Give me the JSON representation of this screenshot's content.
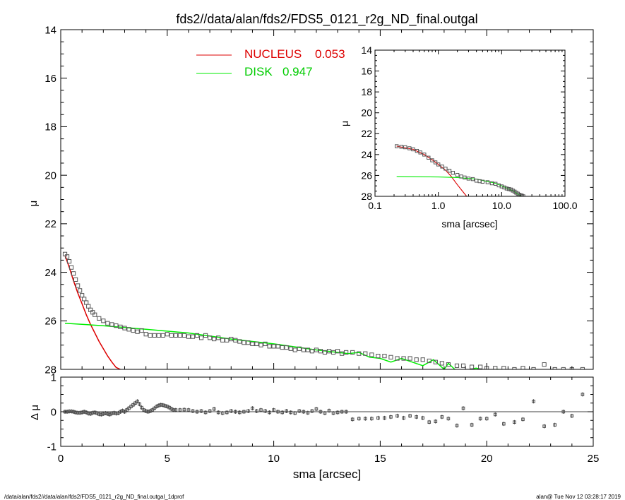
{
  "title": "fds2//data/alan/fds2/FDS5_0121_r2g_ND_final.outgal",
  "footer": {
    "left": "/data/alan/fds2//data/alan/fds2/FDS5_0121_r2g_ND_final.outgal_1dprof",
    "right": "alan@  Tue Nov 12 03:28:17 2019"
  },
  "colors": {
    "nucleus": "#dd0000",
    "disk": "#00ee00",
    "data": "#555555",
    "axis": "#000000"
  },
  "chart_data": [
    {
      "id": "main-profile",
      "type": "line",
      "xlabel": "",
      "ylabel": "μ",
      "xlim": [
        0,
        25
      ],
      "ylim": [
        14,
        28
      ],
      "y_inverted": true,
      "xticks": [
        0,
        5,
        10,
        15,
        20,
        25
      ],
      "yticks": [
        14,
        16,
        18,
        20,
        22,
        24,
        26,
        28
      ],
      "legend_position": "top-center",
      "legend": [
        {
          "name": "NUCLEUS",
          "value": "0.053",
          "color": "#dd0000"
        },
        {
          "name": "DISK",
          "value": "0.947",
          "color": "#00ee00"
        }
      ],
      "series": [
        {
          "name": "NUCLEUS",
          "kind": "line",
          "color": "#dd0000",
          "x": [
            0.2,
            0.4,
            0.6,
            0.8,
            1.0,
            1.2,
            1.4,
            1.6,
            1.8,
            2.0,
            2.2,
            2.4,
            2.6,
            2.8
          ],
          "y": [
            23.3,
            23.8,
            24.35,
            24.85,
            25.3,
            25.75,
            26.15,
            26.5,
            26.85,
            27.15,
            27.45,
            27.7,
            27.92,
            28.0
          ]
        },
        {
          "name": "DISK",
          "kind": "line",
          "color": "#00ee00",
          "x": [
            0.2,
            2,
            4,
            6,
            8,
            10,
            12,
            13,
            13.5,
            14,
            14.5,
            15,
            15.5,
            16,
            16.5,
            17,
            17.5,
            18,
            18.2,
            18.5,
            19,
            19.5,
            20,
            20.5,
            21
          ],
          "y": [
            26.1,
            26.2,
            26.35,
            26.5,
            26.75,
            26.95,
            27.2,
            27.3,
            27.35,
            27.3,
            27.5,
            27.55,
            27.7,
            27.55,
            27.7,
            27.85,
            27.6,
            28.0,
            27.75,
            28.0,
            28.05,
            27.95,
            28.05,
            28.0,
            28.05
          ]
        },
        {
          "name": "data",
          "kind": "points",
          "color": "#555555",
          "x": [
            0.2,
            0.3,
            0.4,
            0.5,
            0.6,
            0.7,
            0.8,
            0.9,
            1.0,
            1.1,
            1.2,
            1.3,
            1.4,
            1.5,
            1.6,
            1.8,
            2.0,
            2.2,
            2.4,
            2.6,
            2.8,
            3.0,
            3.2,
            3.4,
            3.6,
            3.8,
            4.0,
            4.2,
            4.4,
            4.6,
            4.8,
            5.0,
            5.2,
            5.4,
            5.6,
            5.8,
            6.0,
            6.2,
            6.4,
            6.6,
            6.8,
            7.0,
            7.2,
            7.4,
            7.6,
            7.8,
            8.0,
            8.2,
            8.4,
            8.6,
            8.8,
            9.0,
            9.2,
            9.4,
            9.6,
            9.8,
            10.0,
            10.2,
            10.4,
            10.6,
            10.8,
            11.0,
            11.2,
            11.4,
            11.6,
            11.8,
            12.0,
            12.2,
            12.4,
            12.6,
            12.8,
            13.0,
            13.2,
            13.4,
            13.7,
            14.0,
            14.3,
            14.6,
            14.9,
            15.2,
            15.5,
            15.8,
            16.1,
            16.4,
            16.7,
            17.0,
            17.3,
            17.6,
            17.9,
            18.2,
            18.6,
            18.9,
            19.3,
            19.7,
            20.0,
            20.4,
            20.8,
            21.3,
            21.7,
            22.2,
            22.7,
            23.2,
            23.6,
            24.0,
            24.5
          ],
          "y": [
            23.25,
            23.35,
            23.55,
            23.8,
            24.05,
            24.3,
            24.55,
            24.75,
            24.95,
            25.1,
            25.25,
            25.4,
            25.55,
            25.65,
            25.75,
            25.9,
            26.0,
            26.1,
            26.15,
            26.2,
            26.25,
            26.3,
            26.35,
            26.4,
            26.45,
            26.4,
            26.55,
            26.6,
            26.6,
            26.6,
            26.6,
            26.55,
            26.6,
            26.6,
            26.6,
            26.6,
            26.65,
            26.65,
            26.6,
            26.7,
            26.6,
            26.7,
            26.75,
            26.7,
            26.8,
            26.8,
            26.75,
            26.8,
            26.85,
            26.9,
            26.9,
            26.95,
            26.95,
            27.0,
            26.95,
            27.05,
            27.05,
            27.05,
            27.1,
            27.1,
            27.15,
            27.2,
            27.15,
            27.2,
            27.2,
            27.25,
            27.2,
            27.25,
            27.3,
            27.25,
            27.3,
            27.25,
            27.35,
            27.3,
            27.3,
            27.35,
            27.35,
            27.4,
            27.45,
            27.45,
            27.5,
            27.55,
            27.55,
            27.55,
            27.6,
            27.6,
            27.65,
            27.7,
            27.75,
            27.8,
            27.85,
            27.85,
            27.9,
            27.9,
            27.95,
            27.95,
            27.95,
            28.0,
            27.95,
            28.0,
            27.8,
            28.0,
            28.0,
            28.0,
            28.0
          ]
        }
      ]
    },
    {
      "id": "inset-log-profile",
      "type": "line",
      "xlabel": "sma [arcsec]",
      "ylabel": "μ",
      "xscale": "log",
      "xlim": [
        0.1,
        100
      ],
      "ylim": [
        14,
        28
      ],
      "y_inverted": true,
      "xticks": [
        0.1,
        1.0,
        10.0,
        100.0
      ],
      "xticklabels": [
        "0.1",
        "1.0",
        "10.0",
        "100.0"
      ],
      "yticks": [
        14,
        16,
        18,
        20,
        22,
        24,
        26,
        28
      ],
      "series": [
        {
          "name": "NUCLEUS",
          "kind": "line",
          "color": "#dd0000",
          "x": [
            0.22,
            0.4,
            0.6,
            0.8,
            1.0,
            1.3,
            1.6,
            2.0,
            2.4,
            2.8
          ],
          "y": [
            23.2,
            23.5,
            24.0,
            24.5,
            24.95,
            25.5,
            26.1,
            26.9,
            27.5,
            28.0
          ]
        },
        {
          "name": "DISK",
          "kind": "line",
          "color": "#00ee00",
          "x": [
            0.22,
            1,
            2,
            4,
            8,
            12,
            16,
            20
          ],
          "y": [
            26.1,
            26.15,
            26.2,
            26.35,
            26.75,
            27.2,
            27.55,
            28.0
          ]
        },
        {
          "name": "data",
          "kind": "points",
          "color": "#555555",
          "x": [
            0.22,
            0.26,
            0.3,
            0.35,
            0.4,
            0.46,
            0.52,
            0.6,
            0.7,
            0.8,
            0.9,
            1.0,
            1.15,
            1.3,
            1.5,
            1.7,
            2.0,
            2.3,
            2.6,
            3.0,
            3.5,
            4.0,
            4.5,
            5.0,
            6.0,
            7.0,
            8.0,
            9.0,
            10.0,
            11.0,
            12.0,
            13.0,
            14.0,
            15.0,
            16.0,
            17.0,
            18.0,
            19.0,
            20.0,
            21.0,
            22.0
          ],
          "y": [
            23.2,
            23.25,
            23.3,
            23.4,
            23.5,
            23.65,
            23.8,
            24.0,
            24.3,
            24.55,
            24.75,
            24.95,
            25.15,
            25.35,
            25.55,
            25.75,
            25.95,
            26.1,
            26.2,
            26.3,
            26.35,
            26.5,
            26.55,
            26.6,
            26.65,
            26.75,
            26.8,
            26.95,
            27.05,
            27.15,
            27.25,
            27.3,
            27.35,
            27.45,
            27.55,
            27.65,
            27.75,
            27.85,
            27.9,
            27.95,
            28.0
          ]
        }
      ]
    },
    {
      "id": "residuals",
      "type": "scatter",
      "xlabel": "sma [arcsec]",
      "ylabel": "Δ μ",
      "xlim": [
        0,
        25
      ],
      "ylim": [
        -1.0,
        1.0
      ],
      "xticks": [
        0,
        5,
        10,
        15,
        20,
        25
      ],
      "yticks": [
        -1,
        0,
        1
      ],
      "zero_line": true,
      "series": [
        {
          "name": "residual",
          "kind": "points",
          "color": "#555555",
          "x": [
            0.2,
            0.3,
            0.4,
            0.5,
            0.6,
            0.7,
            0.8,
            0.9,
            1.0,
            1.1,
            1.2,
            1.3,
            1.4,
            1.5,
            1.6,
            1.7,
            1.8,
            1.9,
            2.0,
            2.1,
            2.2,
            2.3,
            2.4,
            2.5,
            2.6,
            2.7,
            2.8,
            2.9,
            3.0,
            3.1,
            3.2,
            3.3,
            3.4,
            3.5,
            3.6,
            3.7,
            3.8,
            3.9,
            4.0,
            4.1,
            4.2,
            4.3,
            4.4,
            4.5,
            4.6,
            4.7,
            4.8,
            4.9,
            5.0,
            5.1,
            5.2,
            5.3,
            5.4,
            5.6,
            5.8,
            6.0,
            6.2,
            6.4,
            6.6,
            6.8,
            7.0,
            7.2,
            7.4,
            7.6,
            7.8,
            8.0,
            8.2,
            8.4,
            8.6,
            8.8,
            9.0,
            9.2,
            9.4,
            9.6,
            9.8,
            10.0,
            10.2,
            10.4,
            10.6,
            10.8,
            11.0,
            11.2,
            11.4,
            11.6,
            11.8,
            12.0,
            12.2,
            12.4,
            12.6,
            12.8,
            13.0,
            13.2,
            13.4,
            13.7,
            14.0,
            14.3,
            14.6,
            14.9,
            15.2,
            15.5,
            15.8,
            16.1,
            16.4,
            16.7,
            17.0,
            17.3,
            17.6,
            17.9,
            18.2,
            18.6,
            18.9,
            19.3,
            19.7,
            20.0,
            20.4,
            20.8,
            21.3,
            21.7,
            22.2,
            22.7,
            23.2,
            23.6,
            24.0,
            24.5
          ],
          "y": [
            0.0,
            0.0,
            0.01,
            0.01,
            0.0,
            -0.02,
            -0.03,
            -0.03,
            -0.02,
            0.0,
            -0.02,
            -0.05,
            -0.06,
            -0.03,
            -0.02,
            -0.04,
            -0.07,
            -0.08,
            -0.06,
            -0.04,
            -0.06,
            -0.08,
            -0.05,
            -0.03,
            -0.05,
            -0.04,
            0.0,
            0.03,
            0.0,
            0.05,
            0.1,
            0.15,
            0.2,
            0.25,
            0.3,
            0.22,
            0.12,
            0.05,
            0.02,
            0.0,
            0.02,
            0.05,
            0.1,
            0.15,
            0.18,
            0.2,
            0.19,
            0.17,
            0.15,
            0.12,
            0.08,
            0.05,
            0.05,
            0.05,
            0.06,
            0.05,
            0.02,
            0.0,
            0.02,
            -0.02,
            0.02,
            0.08,
            -0.02,
            -0.04,
            -0.02,
            0.02,
            0.0,
            -0.02,
            0.0,
            0.02,
            0.1,
            0.02,
            0.05,
            0.02,
            -0.02,
            0.05,
            0.0,
            -0.02,
            0.02,
            -0.02,
            -0.04,
            0.02,
            0.0,
            -0.03,
            0.02,
            0.08,
            0.0,
            -0.04,
            0.03,
            -0.04,
            -0.02,
            0.0,
            0.0,
            -0.22,
            -0.2,
            -0.2,
            -0.2,
            -0.18,
            -0.18,
            -0.15,
            -0.12,
            -0.18,
            -0.12,
            -0.15,
            -0.18,
            -0.3,
            -0.28,
            -0.15,
            -0.2,
            -0.4,
            0.1,
            -0.38,
            -0.2,
            -0.2,
            -0.08,
            -0.35,
            -0.3,
            -0.22,
            0.3,
            -0.42,
            -0.38,
            0.0,
            -0.12,
            0.5
          ]
        }
      ]
    }
  ]
}
